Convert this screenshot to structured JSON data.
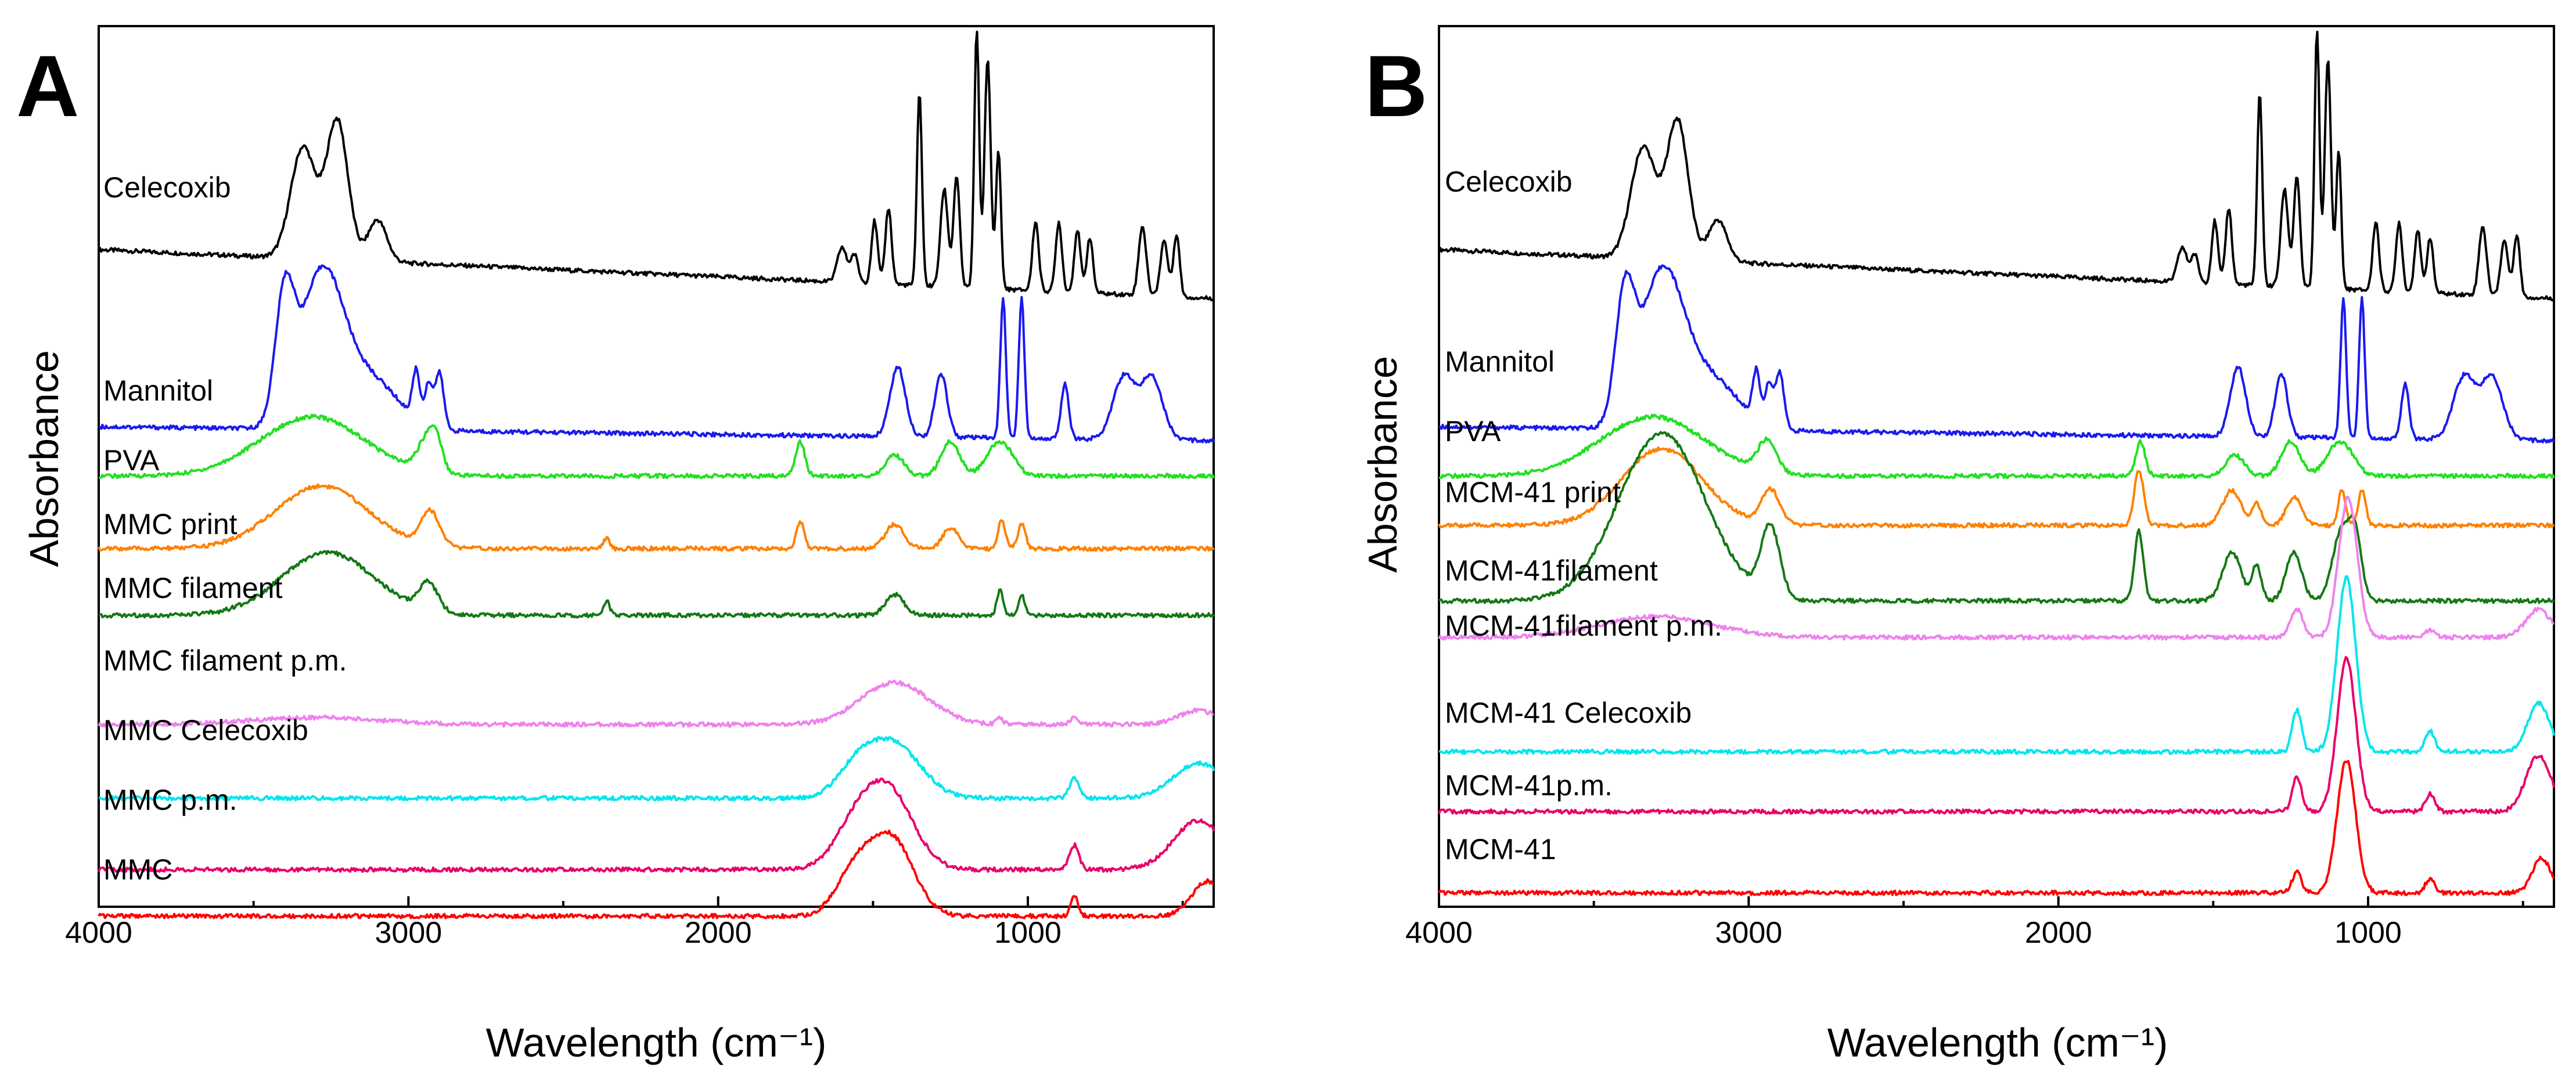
{
  "figure": {
    "panels": [
      {
        "letter": "A",
        "ylabel": "Absorbance",
        "xlabel": "Wavelength (cm⁻¹)"
      },
      {
        "letter": "B",
        "ylabel": "Absorbance",
        "xlabel": "Wavelength (cm⁻¹)"
      }
    ]
  },
  "chart_data": [
    {
      "panel": "A",
      "type": "line",
      "xlabel": "Wavelength (cm⁻¹)",
      "ylabel": "Absorbance",
      "xlim": [
        4000,
        400
      ],
      "xticks": [
        4000,
        3000,
        2000,
        1000
      ],
      "series": [
        {
          "name": "Celecoxib",
          "color": "#000000",
          "baseline": 0.77,
          "peaks": [
            [
              3340,
              0.16,
              40
            ],
            [
              3230,
              0.2,
              35
            ],
            [
              3100,
              0.06,
              30
            ],
            [
              1600,
              0.05,
              15
            ],
            [
              1560,
              0.04,
              12
            ],
            [
              1495,
              0.09,
              10
            ],
            [
              1450,
              0.11,
              10
            ],
            [
              1350,
              0.28,
              8
            ],
            [
              1270,
              0.14,
              12
            ],
            [
              1230,
              0.16,
              10
            ],
            [
              1165,
              0.37,
              8
            ],
            [
              1130,
              0.33,
              10
            ],
            [
              1095,
              0.2,
              8
            ],
            [
              975,
              0.1,
              10
            ],
            [
              900,
              0.1,
              10
            ],
            [
              840,
              0.09,
              10
            ],
            [
              800,
              0.08,
              10
            ],
            [
              630,
              0.1,
              12
            ],
            [
              560,
              0.08,
              12
            ],
            [
              520,
              0.09,
              10
            ]
          ],
          "slope": -0.06
        },
        {
          "name": "Mannitol",
          "color": "#1a1aee",
          "baseline": 0.515,
          "peaks": [
            [
              3380,
              0.16,
              40
            ],
            [
              3280,
              0.22,
              80
            ],
            [
              3100,
              0.06,
              80
            ],
            [
              2975,
              0.07,
              15
            ],
            [
              2930,
              0.07,
              15
            ],
            [
              2900,
              0.08,
              15
            ],
            [
              1420,
              0.1,
              25
            ],
            [
              1280,
              0.09,
              20
            ],
            [
              1210,
              0.05,
              15
            ],
            [
              1080,
              0.2,
              10
            ],
            [
              1020,
              0.2,
              10
            ],
            [
              930,
              0.04,
              10
            ],
            [
              880,
              0.08,
              12
            ],
            [
              700,
              0.08,
              30
            ],
            [
              630,
              0.1,
              30
            ],
            [
              560,
              0.07,
              30
            ]
          ],
          "slope": 0
        }
      ]
    },
    {
      "panel": "B",
      "type": "line",
      "xlabel": "Wavelength (cm⁻¹)",
      "ylabel": "Absorbance",
      "xlim": [
        4000,
        400
      ],
      "xticks": [
        4000,
        3000,
        2000,
        1000
      ],
      "series": []
    }
  ],
  "labels_A": [
    "Celecoxib",
    "Mannitol",
    "PVA",
    "MMC print",
    "MMC filament",
    "MMC filament p.m.",
    "MMC Celecoxib",
    "MMC p.m.",
    "MMC"
  ],
  "labels_B": [
    "Celecoxib",
    "Mannitol",
    "PVA",
    "MCM-41 print",
    "MCM-41filament",
    "MCM-41filament p.m.",
    "MCM-41 Celecoxib",
    "MCM-41p.m.",
    "MCM-41"
  ],
  "colors": [
    "#000000",
    "#1a1aee",
    "#22e022",
    "#ff8000",
    "#147814",
    "#ee82ee",
    "#00e5ee",
    "#e8006a",
    "#ff0000"
  ]
}
